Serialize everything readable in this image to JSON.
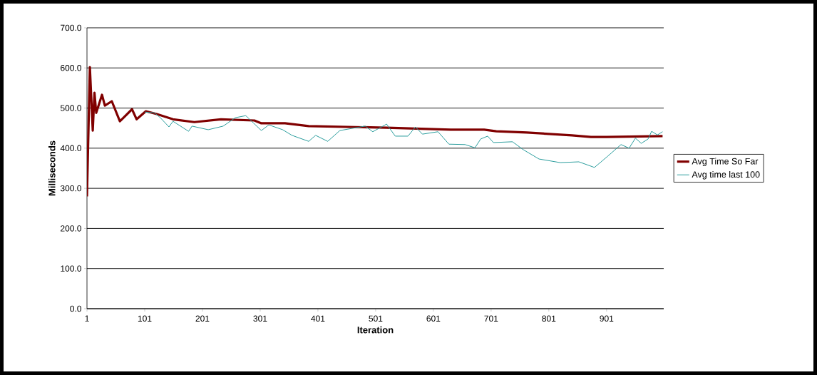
{
  "chart_data": {
    "type": "line",
    "xlabel": "Iteration",
    "ylabel": "Milliseconds",
    "xlim": [
      1,
      1000
    ],
    "xticks": [
      1,
      101,
      201,
      301,
      401,
      501,
      601,
      701,
      801,
      901
    ],
    "ylim": [
      0,
      700
    ],
    "yticks": [
      {
        "value": 0,
        "label": "0.0"
      },
      {
        "value": 100,
        "label": "100.0"
      },
      {
        "value": 200,
        "label": "200.0"
      },
      {
        "value": 300,
        "label": "300.0"
      },
      {
        "value": 400,
        "label": "400.0"
      },
      {
        "value": 500,
        "label": "500.0"
      },
      {
        "value": 600,
        "label": "600.0"
      },
      {
        "value": 700,
        "label": "700.0"
      }
    ],
    "grid": "y",
    "legend": "right",
    "marker": "none",
    "line_style": "solid",
    "series": [
      {
        "name": "Avg Time So Far",
        "color": "#800000",
        "x": [
          1,
          6,
          11,
          14,
          17,
          27,
          32,
          44,
          58,
          79,
          87,
          103,
          122,
          150,
          187,
          233,
          291,
          303,
          344,
          385,
          520,
          631,
          689,
          710,
          763,
          841,
          874,
          901,
          998
        ],
        "values": [
          280,
          602,
          444,
          538,
          488,
          533,
          506,
          517,
          467,
          497,
          472,
          492,
          485,
          472,
          465,
          472,
          469,
          462,
          462,
          455,
          451,
          446,
          446,
          442,
          439,
          432,
          428,
          428,
          430
        ]
      },
      {
        "name": "Avg time last 100",
        "color": "#2a9d9d",
        "x": [
          101,
          118,
          128,
          143,
          150,
          177,
          183,
          211,
          237,
          258,
          276,
          282,
          303,
          316,
          340,
          356,
          385,
          397,
          418,
          439,
          483,
          496,
          520,
          535,
          557,
          570,
          582,
          609,
          628,
          656,
          673,
          683,
          695,
          705,
          738,
          757,
          784,
          821,
          853,
          880,
          903,
          926,
          940,
          951,
          961,
          973,
          979,
          989,
          998
        ],
        "values": [
          490,
          488,
          476,
          453,
          467,
          442,
          455,
          446,
          455,
          476,
          481,
          473,
          444,
          458,
          446,
          432,
          417,
          432,
          417,
          444,
          455,
          441,
          460,
          430,
          430,
          453,
          435,
          441,
          410,
          409,
          401,
          423,
          430,
          414,
          416,
          396,
          373,
          364,
          366,
          352,
          380,
          409,
          400,
          425,
          412,
          423,
          442,
          433,
          441
        ]
      }
    ]
  }
}
